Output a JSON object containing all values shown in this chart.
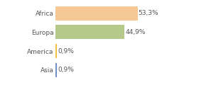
{
  "categories": [
    "Africa",
    "Europa",
    "America",
    "Asia"
  ],
  "values": [
    53.3,
    44.9,
    0.9,
    0.9
  ],
  "labels": [
    "53,3%",
    "44,9%",
    "0,9%",
    "0,9%"
  ],
  "bar_colors": [
    "#f5c896",
    "#b5c98a",
    "#f0c040",
    "#7090c8"
  ],
  "background_color": "#ffffff",
  "xlim": [
    0,
    70
  ],
  "label_fontsize": 6.5,
  "tick_fontsize": 6.5,
  "bar_height": 0.75
}
